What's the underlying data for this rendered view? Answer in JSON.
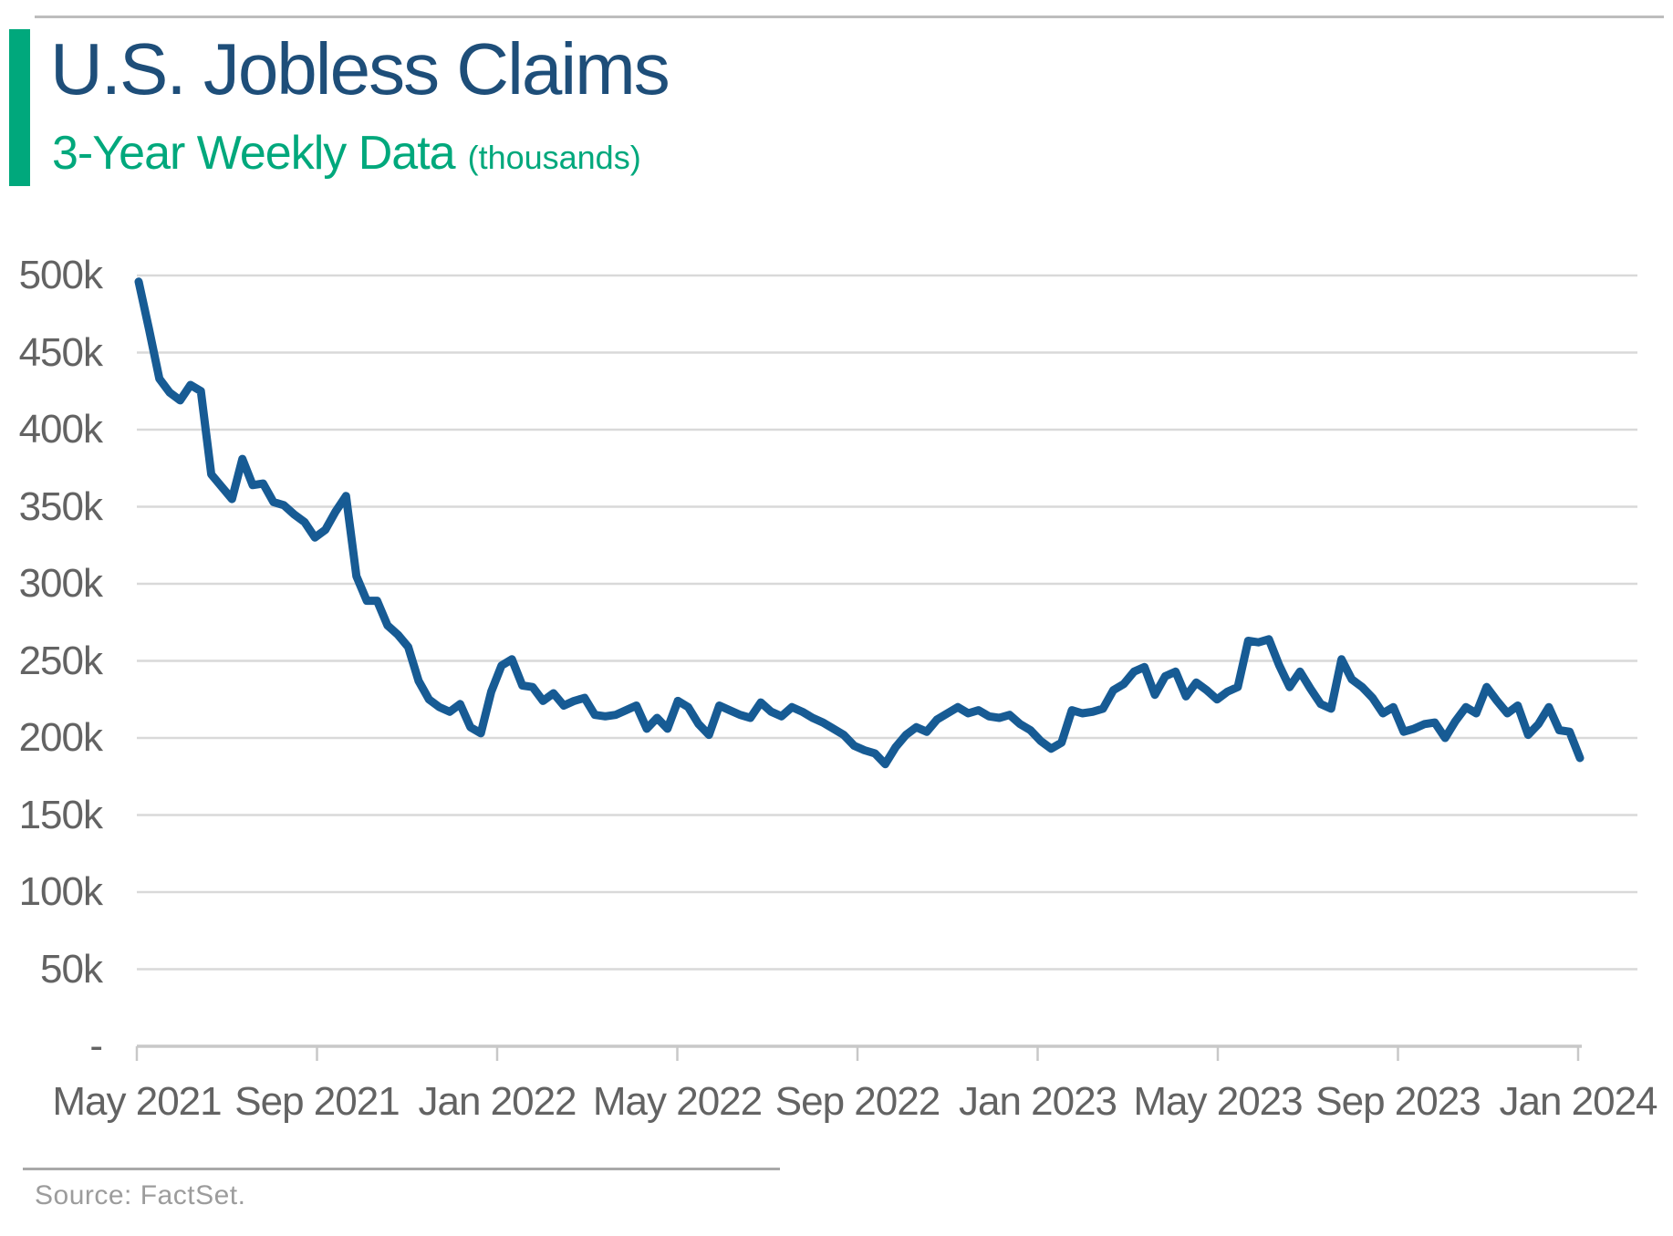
{
  "header": {
    "title": "U.S. Jobless Claims",
    "subtitle": "3-Year Weekly Data",
    "subtitle_note": "(thousands)"
  },
  "footer": {
    "source": "Source: FactSet."
  },
  "colors": {
    "accent_green": "#00a87c",
    "title_blue": "#1e4e79",
    "line_blue": "#175b94",
    "axis_text": "#636363",
    "gridline": "#d9d9d9",
    "axis_line": "#c8c8c8",
    "divider": "#a9a9a9",
    "top_border": "#bdbdbd",
    "source_text": "#9c9c9c"
  },
  "chart_data": {
    "type": "line",
    "title": "U.S. Jobless Claims",
    "subtitle": "3-Year Weekly Data (thousands)",
    "unit": "thousands of claims per week",
    "xlabel": "",
    "ylabel": "",
    "ylim": [
      0,
      500
    ],
    "grid": true,
    "legend_position": "none",
    "x_ticks": [
      "May 2021",
      "Sep 2021",
      "Jan 2022",
      "May 2022",
      "Sep 2022",
      "Jan 2023",
      "May 2023",
      "Sep 2023",
      "Jan 2024"
    ],
    "y_ticks": [
      {
        "label": "500k",
        "value": 500
      },
      {
        "label": "450k",
        "value": 450
      },
      {
        "label": "400k",
        "value": 400
      },
      {
        "label": "350k",
        "value": 350
      },
      {
        "label": "300k",
        "value": 300
      },
      {
        "label": "250k",
        "value": 250
      },
      {
        "label": "200k",
        "value": 200
      },
      {
        "label": "150k",
        "value": 150
      },
      {
        "label": "100k",
        "value": 100
      },
      {
        "label": "50k",
        "value": 50
      },
      {
        "label": "-",
        "value": 0
      }
    ],
    "values": [
      496,
      465,
      433,
      424,
      419,
      429,
      425,
      371,
      363,
      355,
      381,
      364,
      365,
      353,
      351,
      345,
      340,
      330,
      335,
      347,
      357,
      305,
      289,
      289,
      273,
      267,
      259,
      237,
      225,
      220,
      217,
      222,
      207,
      203,
      230,
      247,
      251,
      234,
      233,
      224,
      229,
      221,
      224,
      226,
      215,
      214,
      215,
      218,
      221,
      206,
      213,
      206,
      224,
      220,
      209,
      202,
      221,
      218,
      215,
      213,
      223,
      217,
      214,
      220,
      217,
      213,
      210,
      206,
      202,
      195,
      192,
      190,
      183,
      194,
      202,
      207,
      204,
      212,
      216,
      220,
      216,
      218,
      214,
      213,
      215,
      209,
      205,
      198,
      193,
      197,
      218,
      216,
      217,
      219,
      231,
      235,
      243,
      246,
      228,
      240,
      243,
      227,
      236,
      231,
      225,
      230,
      233,
      263,
      262,
      264,
      247,
      233,
      243,
      232,
      222,
      219,
      251,
      238,
      233,
      226,
      216,
      220,
      204,
      206,
      209,
      210,
      200,
      211,
      220,
      216,
      233,
      224,
      216,
      221,
      202,
      209,
      220,
      205,
      204,
      187
    ]
  }
}
